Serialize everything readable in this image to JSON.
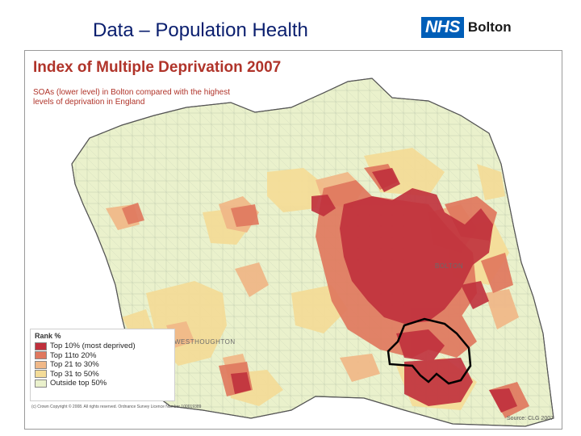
{
  "slide": {
    "title": "Data – Population Health",
    "logo": {
      "badge": "NHS",
      "org": "Bolton",
      "badge_color": "#005eb8"
    }
  },
  "map": {
    "title": "Index of Multiple Deprivation 2007",
    "subtitle": "SOAs (lower level) in Bolton compared with the highest levels of deprivation in England",
    "legend": {
      "title": "Rank %",
      "items": [
        {
          "label": "Top 10% (most deprived)",
          "color": "#c0303c"
        },
        {
          "label": "Top 11to 20%",
          "color": "#e0785e"
        },
        {
          "label": "Top 21 to 30%",
          "color": "#f0b888"
        },
        {
          "label": "Top 31 to 50%",
          "color": "#f4dc98"
        },
        {
          "label": "Outside top 50%",
          "color": "#eaf1cc"
        }
      ]
    },
    "place_labels": [
      "BOLTON",
      "WESTHOUGHTON"
    ],
    "copyright": "(c) Crown Copyright © 2008. All rights reserved. Ordnance Survey Licence Number 100019389",
    "source": "Source: CLG 2007",
    "colors": {
      "boundary": "#555555",
      "highlight_outline": "#000000",
      "base_fill": "#eaf1cc"
    }
  }
}
